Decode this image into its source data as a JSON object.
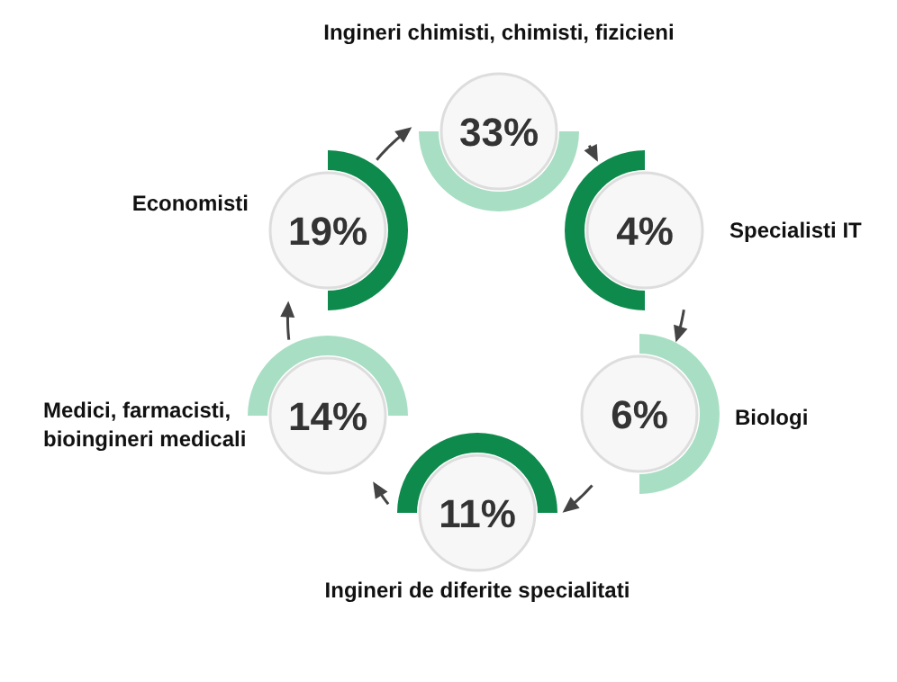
{
  "chart_data": {
    "type": "other",
    "categories": [
      "Ingineri chimisti, chimisti, fizicieni",
      "Specialisti IT",
      "Biologi",
      "Ingineri de diferite specialitati",
      "Medici, farmacisti, bioingineri medicali",
      "Economisti"
    ],
    "values": [
      33,
      4,
      6,
      11,
      14,
      19
    ],
    "value_labels": [
      "33%",
      "4%",
      "6%",
      "11%",
      "14%",
      "19%"
    ]
  }
}
